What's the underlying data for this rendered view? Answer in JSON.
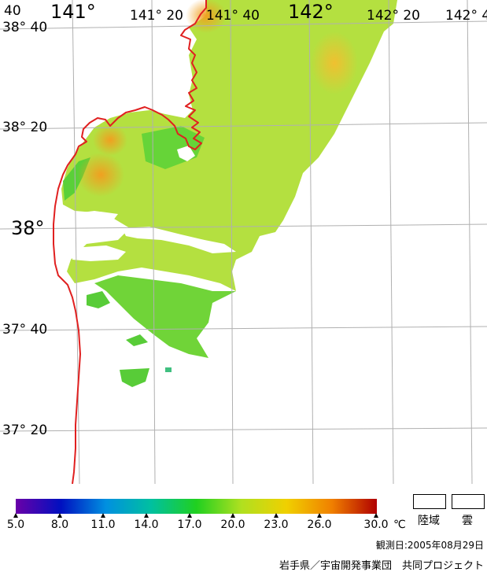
{
  "map": {
    "lon_labels": [
      "141°",
      "141° 20",
      "141° 40",
      "142°",
      "142° 20",
      "142° 4"
    ],
    "lat_labels": [
      "38° 40",
      "38° 20",
      "38°",
      "37° 40",
      "37° 20"
    ],
    "corner_label": "40",
    "colors": {
      "coast": "#e02020",
      "grid": "#b0b0b0",
      "warm": "#f0a020",
      "mid": "#c8e040",
      "cool": "#28c830",
      "land": "#ffffff",
      "cloud": "#ffffff"
    }
  },
  "colorbar": {
    "ticks": [
      "5.0",
      "8.0",
      "11.0",
      "14.0",
      "17.0",
      "20.0",
      "23.0",
      "26.0",
      "30.0"
    ],
    "unit": "℃",
    "colors": [
      "#6a00a8",
      "#0010c0",
      "#0090e0",
      "#00c0a0",
      "#20d020",
      "#b0e020",
      "#f0d000",
      "#f08000",
      "#b00000"
    ]
  },
  "legend": {
    "land_label": "陸域",
    "cloud_label": "雲"
  },
  "footer": {
    "observation_date": "観測日:2005年08月29日",
    "project": "岩手県／宇宙開発事業団　共同プロジェクト"
  }
}
